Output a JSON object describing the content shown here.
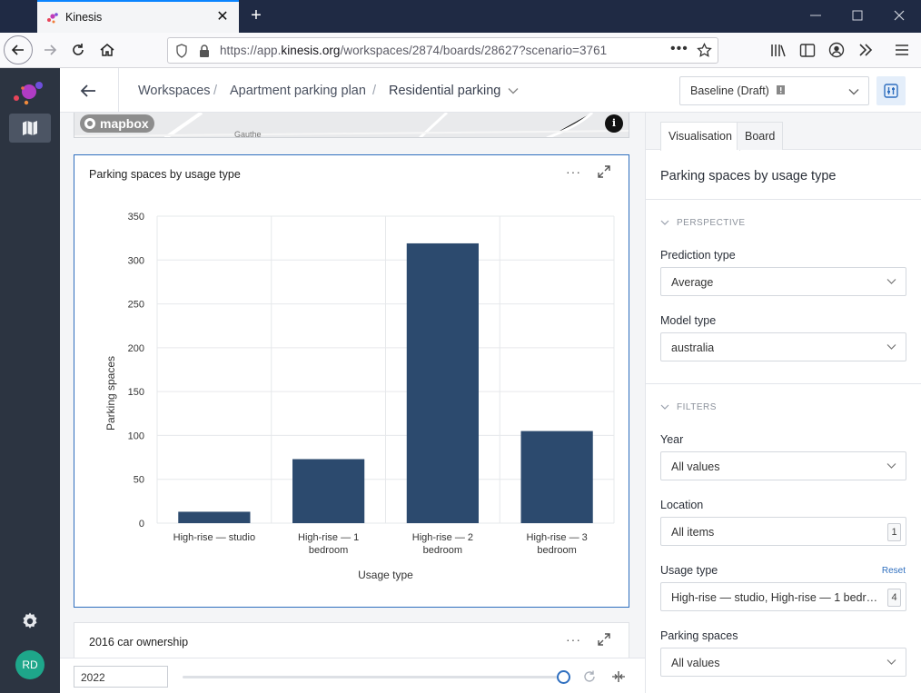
{
  "browser": {
    "tab_title": "Kinesis",
    "url_prefix": "https://app.",
    "url_domain": "kinesis.org",
    "url_path": "/workspaces/2874/boards/28627?scenario=3761"
  },
  "user": {
    "initials": "RD"
  },
  "header": {
    "breadcrumb": [
      "Workspaces",
      "Apartment parking plan",
      "Residential parking"
    ],
    "separator": "/",
    "scenario": "Baseline (Draft)"
  },
  "map": {
    "attribution_logo": "mapbox",
    "road_label": "Gauthe"
  },
  "chart_card": {
    "title": "Parking spaces by usage type",
    "more_label": "···"
  },
  "chart_data": {
    "type": "bar",
    "categories": [
      [
        "High-rise — studio"
      ],
      [
        "High-rise — 1",
        "bedroom"
      ],
      [
        "High-rise — 2",
        "bedroom"
      ],
      [
        "High-rise — 3",
        "bedroom"
      ]
    ],
    "values": [
      13,
      73,
      319,
      105
    ],
    "xlabel": "Usage type",
    "ylabel": "Parking spaces",
    "ylim": [
      0,
      350
    ],
    "yticks": [
      0,
      50,
      100,
      150,
      200,
      250,
      300,
      350
    ],
    "grid": true,
    "bar_color": "#2c4a6e"
  },
  "second_card": {
    "title": "2016 car ownership",
    "more_label": "···"
  },
  "timeline": {
    "year": "2022"
  },
  "panel": {
    "tabs": [
      "Visualisation",
      "Board"
    ],
    "title": "Parking spaces by usage type",
    "perspective_heading": "PERSPECTIVE",
    "prediction_label": "Prediction type",
    "prediction_value": "Average",
    "model_label": "Model type",
    "model_value": "australia",
    "filters_heading": "FILTERS",
    "year_label": "Year",
    "year_value": "All values",
    "location_label": "Location",
    "location_value": "All items",
    "location_count": "1",
    "usage_label": "Usage type",
    "usage_reset": "Reset",
    "usage_value": "High-rise — studio, High-rise — 1 bedroo...",
    "usage_count": "4",
    "parking_label": "Parking spaces",
    "parking_value": "All values"
  },
  "colors": {
    "accent": "#2f6fbf",
    "rail": "#2c3441",
    "titlebar": "#1f2a44",
    "avatar": "#1ea68a"
  }
}
